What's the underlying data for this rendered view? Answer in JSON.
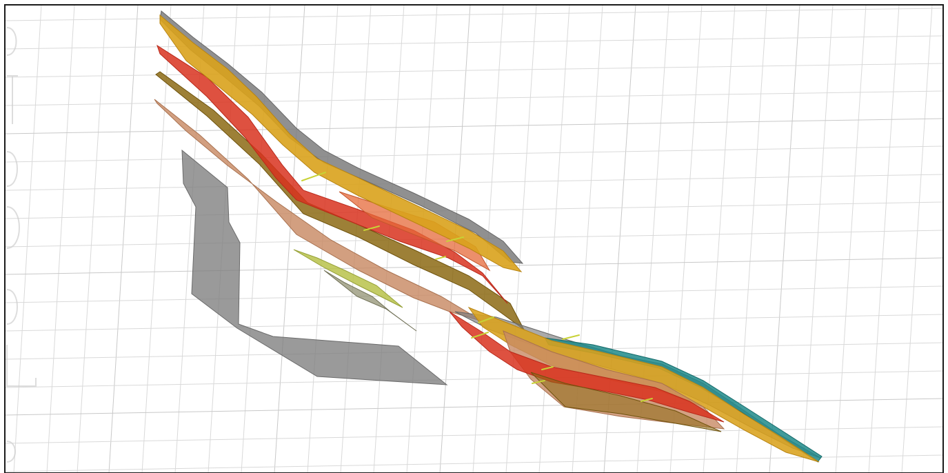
{
  "scene": {
    "title": "",
    "colors": {
      "background": "#ffffff",
      "frame": "#1a1a1a",
      "grid": "#d9d9d9",
      "grey_surface": "#7d7d7d",
      "gold_surface": "#d9a21c",
      "red_surface": "#d8321e",
      "orange_surface": "#e56a3a",
      "olive_surface": "#8c6a14",
      "tan_surface": "#c88a64",
      "lime_surface": "#b8c24a",
      "teal_edge": "#1f8a8a"
    },
    "grid": {
      "top_tick_labels": [
        "",
        "",
        "",
        "",
        ""
      ],
      "bottom_tick_labels": [
        "",
        "",
        "",
        "",
        ""
      ],
      "left_tick_labels": [
        "",
        "",
        ""
      ],
      "right_tick_labels": [
        "",
        "",
        ""
      ]
    },
    "surfaces": [
      {
        "name": "grey-top-surface",
        "color_key": "grey_surface"
      },
      {
        "name": "gold-surface",
        "color_key": "gold_surface"
      },
      {
        "name": "red-surface",
        "color_key": "red_surface"
      },
      {
        "name": "orange-surface",
        "color_key": "orange_surface"
      },
      {
        "name": "olive-surface",
        "color_key": "olive_surface"
      },
      {
        "name": "tan-surface",
        "color_key": "tan_surface"
      },
      {
        "name": "lime-surface",
        "color_key": "lime_surface"
      },
      {
        "name": "grey-fault-surface",
        "color_key": "grey_surface"
      }
    ]
  }
}
